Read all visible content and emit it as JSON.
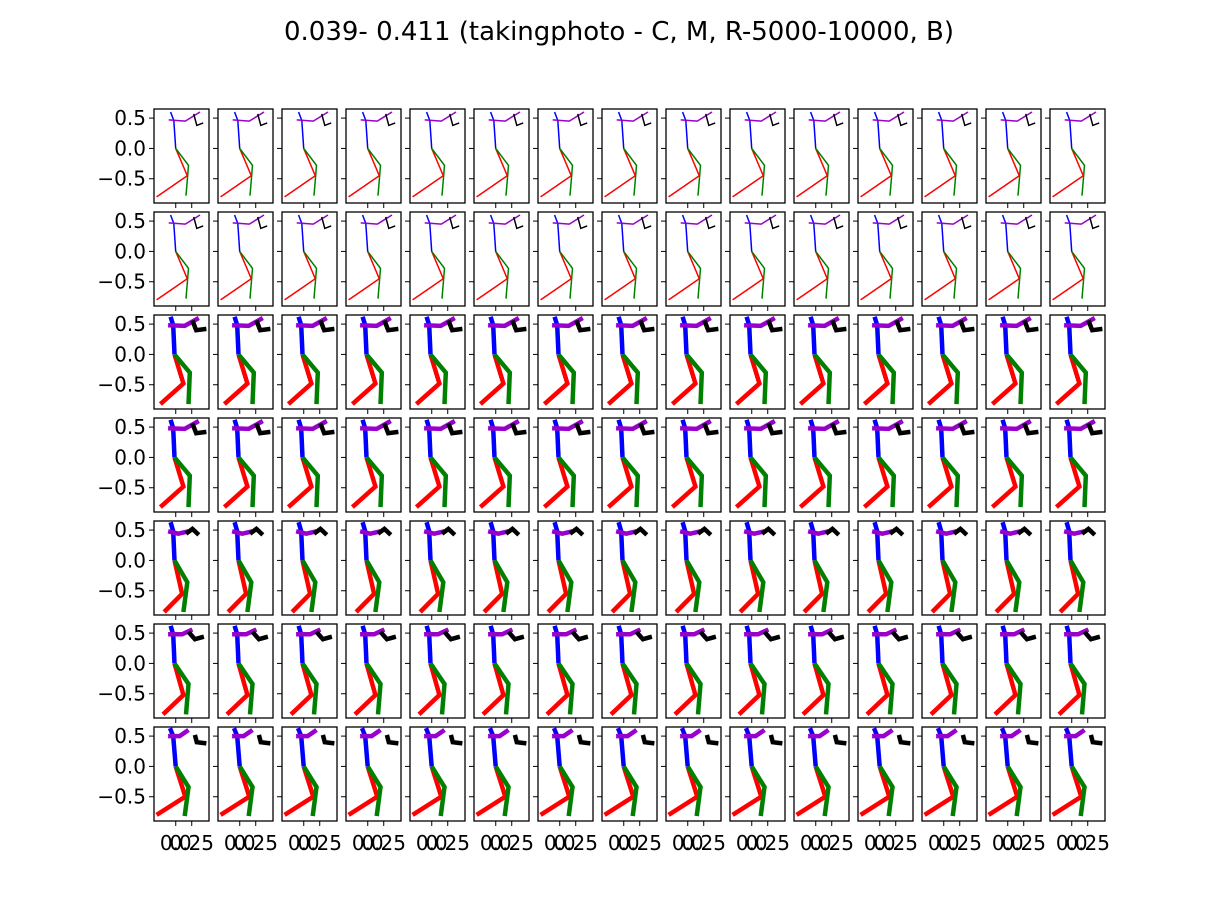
{
  "figure": {
    "title": "0.039- 0.411 (takingphoto - C, M, R-5000-10000, B)"
  },
  "chart_data": {
    "type": "grid of skeleton pose plots",
    "title": "0.039- 0.411 (takingphoto - C, M, R-5000-10000, B)",
    "rows": 7,
    "cols": 15,
    "shared_y": true,
    "shared_x": true,
    "ylim": [
      -0.9,
      0.65
    ],
    "xlim": [
      -0.34,
      0.52
    ],
    "y_ticks": [
      0.5,
      0.0,
      -0.5
    ],
    "y_tick_labels": [
      "0.5",
      "0.0",
      "−0.5"
    ],
    "x_ticks": [
      0.0,
      0.25
    ],
    "x_tick_labels": [
      "0.0",
      "0.25"
    ],
    "limb_colors": {
      "spine": "#0000ff",
      "leg_right": "#ff0000",
      "leg_left": "#008000",
      "arm_left": "#9900cc",
      "arm_right": "#000000"
    },
    "row_line_widths": [
      1.5,
      1.5,
      4.5,
      4.5,
      4.5,
      4.5,
      4.5
    ],
    "pose_types": [
      {
        "name": "A",
        "spine": [
          [
            -0.08,
            0.6
          ],
          [
            -0.03,
            0.46
          ],
          [
            0.0,
            0.0
          ]
        ],
        "leg_right": [
          [
            0.0,
            0.0
          ],
          [
            0.18,
            -0.45
          ],
          [
            -0.3,
            -0.8
          ]
        ],
        "leg_left": [
          [
            0.0,
            0.0
          ],
          [
            0.2,
            -0.28
          ],
          [
            0.16,
            -0.78
          ]
        ],
        "arm_left": [
          [
            -0.11,
            0.47
          ],
          [
            0.15,
            0.45
          ],
          [
            0.38,
            0.6
          ]
        ],
        "arm_right": [
          [
            0.28,
            0.57
          ],
          [
            0.33,
            0.38
          ],
          [
            0.43,
            0.42
          ]
        ]
      },
      {
        "name": "B",
        "spine": [
          [
            -0.09,
            0.63
          ],
          [
            -0.04,
            0.5
          ],
          [
            0.0,
            0.0
          ]
        ],
        "leg_right": [
          [
            0.0,
            0.0
          ],
          [
            0.15,
            -0.5
          ],
          [
            -0.3,
            -0.8
          ]
        ],
        "leg_left": [
          [
            0.0,
            0.0
          ],
          [
            0.2,
            -0.34
          ],
          [
            0.14,
            -0.82
          ]
        ],
        "arm_left": [
          [
            -0.12,
            0.5
          ],
          [
            0.06,
            0.5
          ],
          [
            0.2,
            0.6
          ]
        ],
        "arm_right": [
          [
            0.3,
            0.52
          ],
          [
            0.33,
            0.4
          ],
          [
            0.48,
            0.38
          ]
        ]
      },
      {
        "name": "C",
        "spine": [
          [
            -0.08,
            0.62
          ],
          [
            -0.04,
            0.48
          ],
          [
            -0.02,
            0.0
          ]
        ],
        "leg_right": [
          [
            -0.02,
            0.0
          ],
          [
            0.12,
            -0.48
          ],
          [
            -0.24,
            -0.82
          ]
        ],
        "leg_left": [
          [
            -0.02,
            0.0
          ],
          [
            0.22,
            -0.3
          ],
          [
            0.2,
            -0.82
          ]
        ],
        "arm_left": [
          [
            -0.12,
            0.48
          ],
          [
            0.14,
            0.47
          ],
          [
            0.36,
            0.6
          ]
        ],
        "arm_right": [
          [
            0.26,
            0.56
          ],
          [
            0.32,
            0.4
          ],
          [
            0.48,
            0.42
          ]
        ]
      },
      {
        "name": "D",
        "spine": [
          [
            -0.08,
            0.63
          ],
          [
            -0.04,
            0.48
          ],
          [
            -0.02,
            0.0
          ]
        ],
        "leg_right": [
          [
            -0.02,
            0.0
          ],
          [
            0.1,
            -0.55
          ],
          [
            -0.18,
            -0.85
          ]
        ],
        "leg_left": [
          [
            -0.02,
            0.0
          ],
          [
            0.18,
            -0.36
          ],
          [
            0.12,
            -0.85
          ]
        ],
        "arm_left": [
          [
            -0.12,
            0.48
          ],
          [
            0.04,
            0.44
          ],
          [
            0.2,
            0.48
          ]
        ],
        "arm_right": [
          [
            0.16,
            0.44
          ],
          [
            0.26,
            0.52
          ],
          [
            0.36,
            0.42
          ]
        ]
      },
      {
        "name": "E",
        "spine": [
          [
            -0.08,
            0.62
          ],
          [
            -0.04,
            0.48
          ],
          [
            -0.02,
            0.0
          ]
        ],
        "leg_right": [
          [
            -0.02,
            0.0
          ],
          [
            0.12,
            -0.52
          ],
          [
            -0.2,
            -0.84
          ]
        ],
        "leg_left": [
          [
            -0.02,
            0.0
          ],
          [
            0.2,
            -0.34
          ],
          [
            0.16,
            -0.84
          ]
        ],
        "arm_left": [
          [
            -0.12,
            0.48
          ],
          [
            0.1,
            0.48
          ],
          [
            0.26,
            0.56
          ]
        ],
        "arm_right": [
          [
            0.2,
            0.52
          ],
          [
            0.3,
            0.4
          ],
          [
            0.44,
            0.44
          ]
        ]
      }
    ],
    "row_pose_types": [
      "A",
      "A",
      "C",
      "C",
      "D",
      "E",
      "B"
    ]
  }
}
